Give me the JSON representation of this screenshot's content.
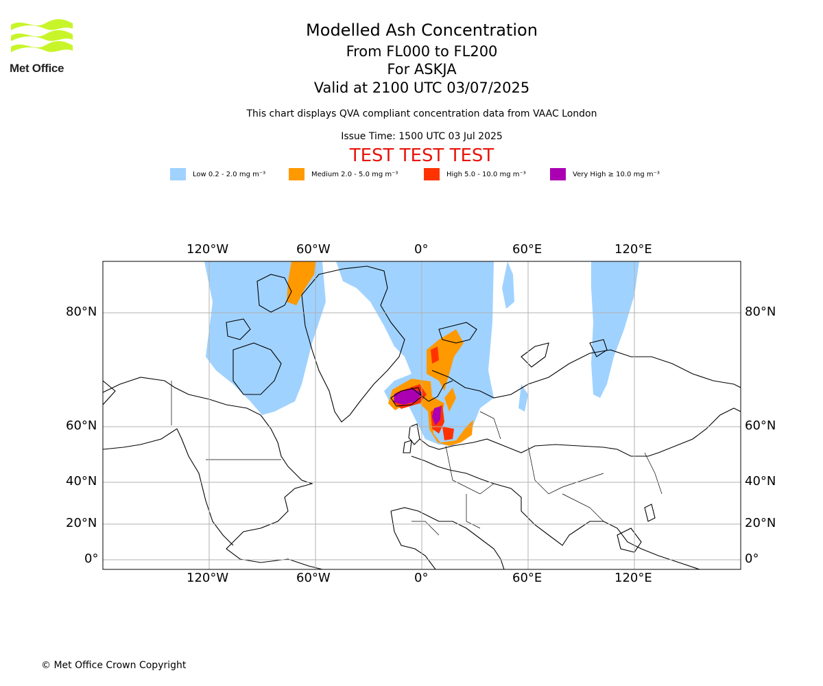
{
  "header": {
    "organisation": "Met Office",
    "title": "Modelled Ash Concentration",
    "levels": "From FL000 to FL200",
    "volcano": "For ASKJA",
    "valid": "Valid at 2100 UTC 03/07/2025",
    "compliance_note": "This chart displays QVA compliant concentration data from VAAC London",
    "issue_time": "Issue Time: 1500 UTC 03 Jul 2025",
    "test_banner": "TEST TEST TEST"
  },
  "legend": [
    {
      "label": "Low 0.2 - 2.0 mg m⁻³",
      "color": "#a0d2ff"
    },
    {
      "label": "Medium 2.0 - 5.0 mg m⁻³",
      "color": "#ff9900"
    },
    {
      "label": "High 5.0 - 10.0 mg m⁻³",
      "color": "#ff3300"
    },
    {
      "label": "Very High  ≥  10.0 mg m⁻³",
      "color": "#aa00b2"
    }
  ],
  "map": {
    "longitude_ticks": [
      "120°W",
      "60°W",
      "0°",
      "60°E",
      "120°E"
    ],
    "latitude_ticks": [
      "80°N",
      "60°N",
      "40°N",
      "20°N",
      "0°"
    ],
    "grid": true
  },
  "footer": {
    "copyright": "© Met Office Crown Copyright"
  }
}
